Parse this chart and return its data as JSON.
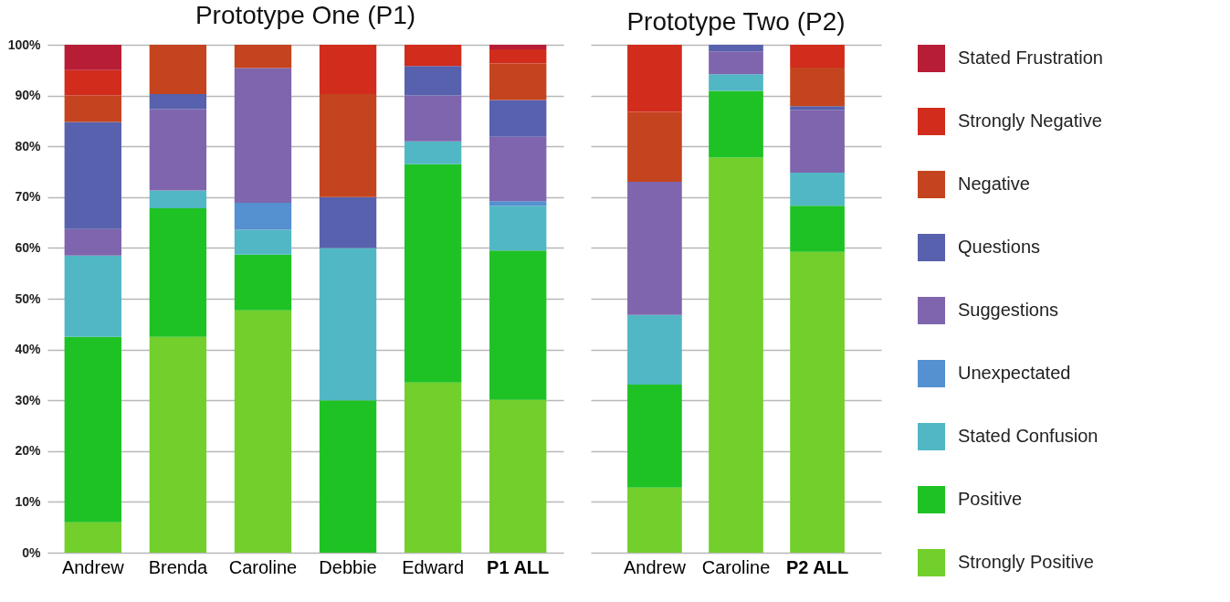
{
  "chart_data": [
    {
      "type": "bar",
      "title": "Prototype One (P1)",
      "stacked": true,
      "categories": [
        "Andrew",
        "Brenda",
        "Caroline",
        "Debbie",
        "Edward",
        "P1 ALL"
      ],
      "ylim": [
        0,
        100
      ],
      "yticks": [
        {
          "value": 0,
          "label": "0%"
        },
        {
          "value": 10,
          "label": "10%"
        },
        {
          "value": 20,
          "label": "20%"
        },
        {
          "value": 30,
          "label": "30%"
        },
        {
          "value": 40,
          "label": "40%"
        },
        {
          "value": 50,
          "label": "50%"
        },
        {
          "value": 60,
          "label": "60%"
        },
        {
          "value": 70,
          "label": "70%"
        },
        {
          "value": 80,
          "label": "80%"
        },
        {
          "value": 90,
          "label": "90%"
        },
        {
          "value": 100,
          "label": "100%"
        }
      ],
      "grid": "y",
      "legend": "right",
      "series": [
        {
          "name": "Strongly Positive",
          "color": "#73cf2b",
          "values": [
            6,
            42.5,
            47.7,
            0,
            33.5,
            30.1
          ]
        },
        {
          "name": "Positive",
          "color": "#1fc224",
          "values": [
            36.5,
            25.3,
            11,
            30,
            43,
            29.4
          ]
        },
        {
          "name": "Stated Confusion",
          "color": "#52b7c4",
          "values": [
            16,
            3.5,
            4.9,
            30,
            4.5,
            8.8
          ]
        },
        {
          "name": "Unexpectated",
          "color": "#5590d0",
          "values": [
            0,
            0,
            5.3,
            0,
            0,
            0.9
          ]
        },
        {
          "name": "Suggestions",
          "color": "#7f65ad",
          "values": [
            5.2,
            16,
            26.5,
            0,
            9,
            12.7
          ]
        },
        {
          "name": "Questions",
          "color": "#5761ad",
          "values": [
            21.1,
            3,
            0,
            10,
            5.8,
            7.2
          ]
        },
        {
          "name": "Negative",
          "color": "#c4441f",
          "values": [
            5.2,
            9.7,
            4.6,
            20.3,
            0,
            7.2
          ]
        },
        {
          "name": "Strongly Negative",
          "color": "#d12c1c",
          "values": [
            5,
            0,
            0,
            9.7,
            4.2,
            2.8
          ]
        },
        {
          "name": "Stated Frustration",
          "color": "#b81d36",
          "values": [
            5,
            0,
            0,
            0,
            0,
            0.9
          ]
        }
      ]
    },
    {
      "type": "bar",
      "title": "Prototype Two (P2)",
      "stacked": true,
      "categories": [
        "Andrew",
        "Caroline",
        "P2 ALL"
      ],
      "ylim": [
        0,
        100
      ],
      "yticks": [
        0,
        10,
        20,
        30,
        40,
        50,
        60,
        70,
        80,
        90,
        100
      ],
      "grid": "y",
      "legend": "right",
      "tick_labels": "x",
      "series": [
        {
          "name": "Strongly Positive",
          "color": "#73cf2b",
          "values": [
            12.8,
            77.8,
            59.2
          ]
        },
        {
          "name": "Positive",
          "color": "#1fc224",
          "values": [
            20.3,
            13.1,
            9.1
          ]
        },
        {
          "name": "Stated Confusion",
          "color": "#52b7c4",
          "values": [
            13.7,
            3.3,
            6.5
          ]
        },
        {
          "name": "Unexpectated",
          "color": "#5590d0",
          "values": [
            0,
            0,
            0
          ]
        },
        {
          "name": "Suggestions",
          "color": "#7f65ad",
          "values": [
            26.2,
            4.5,
            12.4
          ]
        },
        {
          "name": "Questions",
          "color": "#5761ad",
          "values": [
            0,
            1.3,
            0.7
          ]
        },
        {
          "name": "Negative",
          "color": "#c4441f",
          "values": [
            13.8,
            0,
            7.6
          ]
        },
        {
          "name": "Strongly Negative",
          "color": "#d12c1c",
          "values": [
            13.2,
            0,
            4.5
          ]
        },
        {
          "name": "Stated Frustration",
          "color": "#b81d36",
          "values": [
            0,
            0,
            0
          ]
        }
      ]
    }
  ]
}
